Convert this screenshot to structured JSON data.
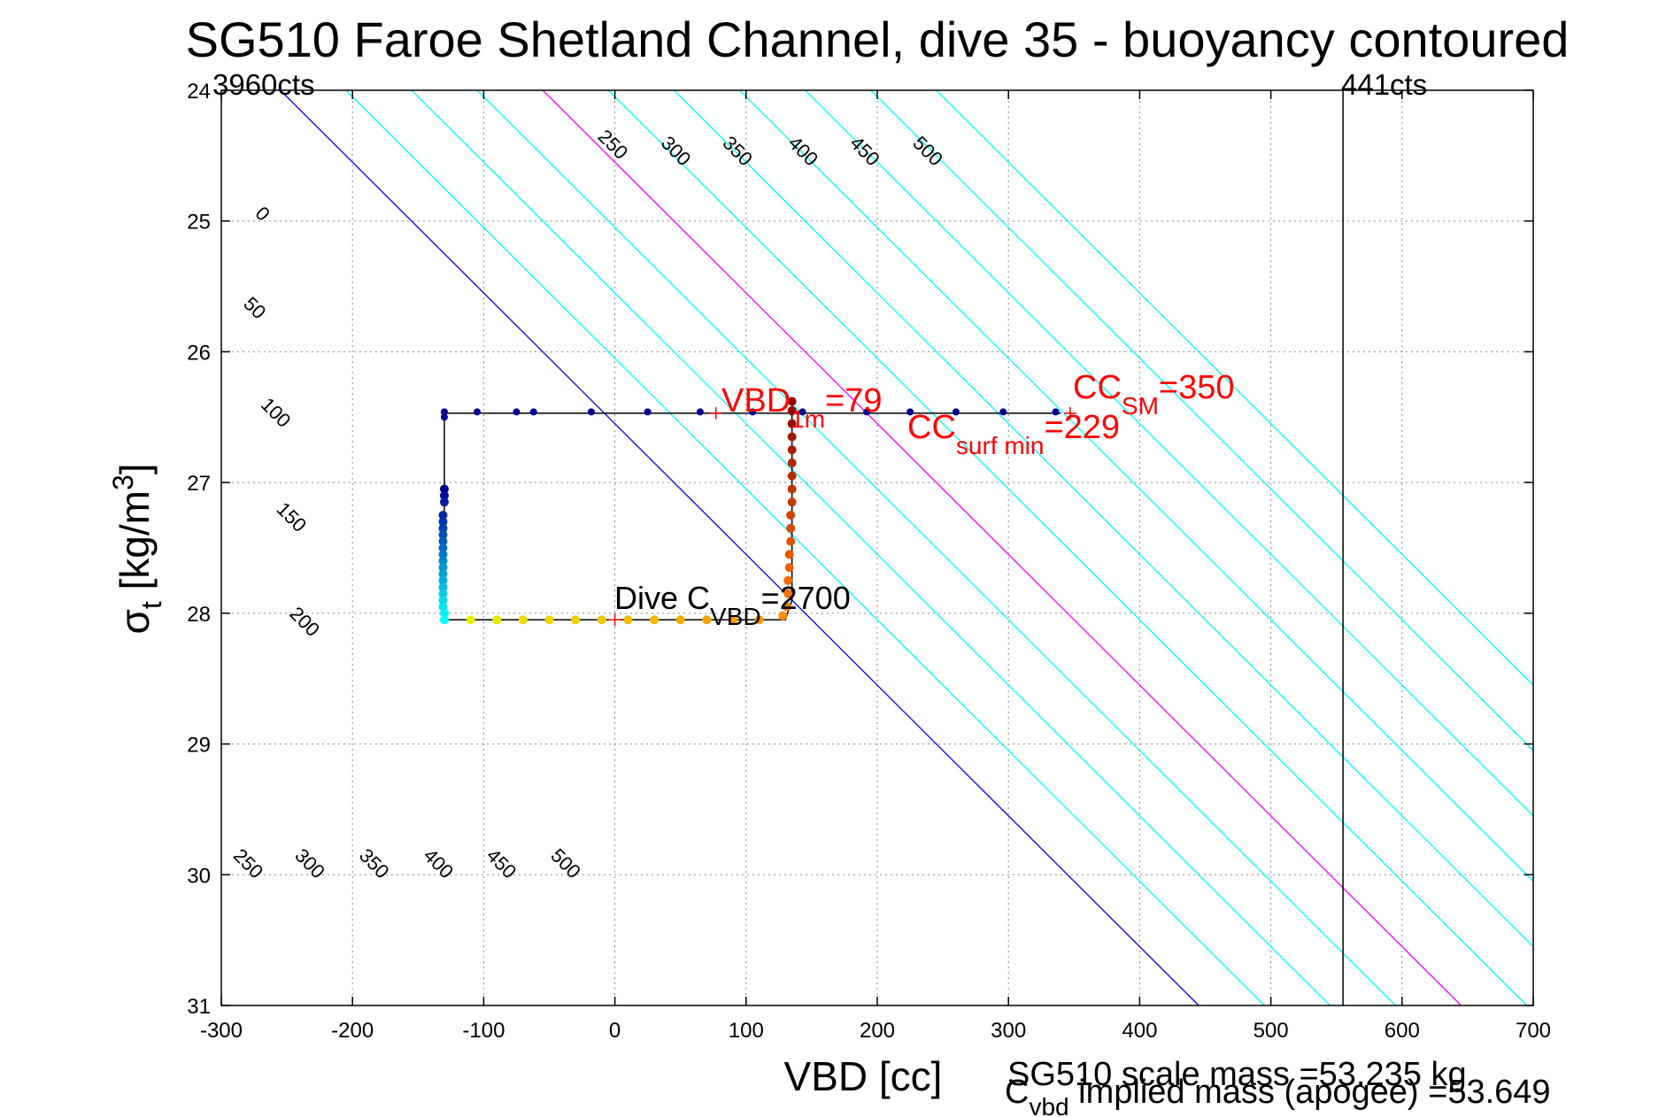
{
  "chart_data": {
    "type": "scatter",
    "title": "SG510 Faroe Shetland Channel, dive 35 - buoyancy contoured",
    "xlabel": "VBD [cc]",
    "ylabel": {
      "sigma": "σ",
      "sub": "t",
      "rest": " [kg/m",
      "sup": "3",
      "close": "]"
    },
    "xlim": [
      -300,
      700
    ],
    "ylim": [
      24,
      31
    ],
    "y_reversed": true,
    "grid": true,
    "x_ticks": [
      -300,
      -200,
      -100,
      0,
      100,
      200,
      300,
      400,
      500,
      600,
      700
    ],
    "y_ticks": [
      24,
      25,
      26,
      27,
      28,
      29,
      30,
      31
    ],
    "x_tick_labels": [
      "-300",
      "-200",
      "-100",
      "0",
      "100",
      "200",
      "300",
      "400",
      "500",
      "600",
      "700"
    ],
    "y_tick_labels": [
      "24",
      "25",
      "26",
      "27",
      "28",
      "29",
      "30",
      "31"
    ],
    "limit_labels": {
      "left": "3960cts",
      "right": "441cts"
    },
    "limit_line_x": 555,
    "contour_slope_cc_per_sigma": 100,
    "contours": [
      {
        "level": 0,
        "x_at_sigma24": -255,
        "color": "#0000ff",
        "label": "0"
      },
      {
        "level": 50,
        "x_at_sigma24": -205,
        "color": "#00ffff",
        "label": "50"
      },
      {
        "level": 100,
        "x_at_sigma24": -155,
        "color": "#00ffff",
        "label": "100"
      },
      {
        "level": 150,
        "x_at_sigma24": -105,
        "color": "#00ffff",
        "label": "150"
      },
      {
        "level": 200,
        "x_at_sigma24": -55,
        "color": "#ff00ff",
        "label": "200"
      },
      {
        "level": 250,
        "x_at_sigma24": -5,
        "color": "#00ffff",
        "label": "250"
      },
      {
        "level": 300,
        "x_at_sigma24": 45,
        "color": "#00ffff",
        "label": "300"
      },
      {
        "level": 350,
        "x_at_sigma24": 95,
        "color": "#00ffff",
        "label": "350"
      },
      {
        "level": 400,
        "x_at_sigma24": 145,
        "color": "#00ffff",
        "label": "400"
      },
      {
        "level": 450,
        "x_at_sigma24": 195,
        "color": "#00ffff",
        "label": "450"
      },
      {
        "level": 500,
        "x_at_sigma24": 245,
        "color": "#00ffff",
        "label": "500"
      }
    ],
    "contour_label_positions": [
      {
        "label": "0",
        "x": -272,
        "y": 24.98
      },
      {
        "label": "50",
        "x": -278,
        "y": 25.7
      },
      {
        "label": "100",
        "x": -262,
        "y": 26.5
      },
      {
        "label": "150",
        "x": -250,
        "y": 27.3
      },
      {
        "label": "200",
        "x": -240,
        "y": 28.1
      },
      {
        "label": "250",
        "x": -5,
        "y": 24.45
      },
      {
        "label": "300",
        "x": 43,
        "y": 24.5
      },
      {
        "label": "350",
        "x": 90,
        "y": 24.5
      },
      {
        "label": "400",
        "x": 140,
        "y": 24.5
      },
      {
        "label": "450",
        "x": 187,
        "y": 24.5
      },
      {
        "label": "500",
        "x": 235,
        "y": 24.5
      },
      {
        "label": "250",
        "x": -283,
        "y": 29.95
      },
      {
        "label": "300",
        "x": -236,
        "y": 29.95
      },
      {
        "label": "350",
        "x": -187,
        "y": 29.95
      },
      {
        "label": "400",
        "x": -138,
        "y": 29.95
      },
      {
        "label": "450",
        "x": -90,
        "y": 29.95
      },
      {
        "label": "500",
        "x": -41,
        "y": 29.95
      }
    ],
    "trajectory_path": [
      {
        "x": -130,
        "y": 26.47
      },
      {
        "x": 340,
        "y": 26.47
      },
      {
        "x": -130,
        "y": 26.47
      },
      {
        "x": -130,
        "y": 28.05
      },
      {
        "x": 130,
        "y": 28.05
      },
      {
        "x": 135,
        "y": 27.9
      },
      {
        "x": 135,
        "y": 26.35
      }
    ],
    "series": [
      {
        "values": [
          {
            "x": -130,
            "y": 26.46
          },
          {
            "x": -105,
            "y": 26.46
          },
          {
            "x": -75,
            "y": 26.46
          },
          {
            "x": -62,
            "y": 26.46
          },
          {
            "x": -18,
            "y": 26.46
          },
          {
            "x": 25,
            "y": 26.46
          },
          {
            "x": 65,
            "y": 26.46
          },
          {
            "x": 105,
            "y": 26.46
          },
          {
            "x": 135,
            "y": 26.46
          },
          {
            "x": 143,
            "y": 26.46
          },
          {
            "x": 192,
            "y": 26.46
          },
          {
            "x": 225,
            "y": 26.46
          },
          {
            "x": 260,
            "y": 26.46
          },
          {
            "x": 296,
            "y": 26.46
          },
          {
            "x": 336,
            "y": 26.46
          },
          {
            "x": -130,
            "y": 26.5
          }
        ]
      },
      {
        "values": [
          {
            "x": -130,
            "y": 27.05
          },
          {
            "x": -130,
            "y": 27.1
          },
          {
            "x": -130,
            "y": 27.15
          },
          {
            "x": -131,
            "y": 27.25
          },
          {
            "x": -131,
            "y": 27.3
          },
          {
            "x": -131,
            "y": 27.35
          },
          {
            "x": -131,
            "y": 27.4
          },
          {
            "x": -131,
            "y": 27.45
          },
          {
            "x": -131,
            "y": 27.5
          },
          {
            "x": -131,
            "y": 27.55
          },
          {
            "x": -131,
            "y": 27.6
          },
          {
            "x": -131,
            "y": 27.65
          },
          {
            "x": -131,
            "y": 27.7
          },
          {
            "x": -131,
            "y": 27.75
          },
          {
            "x": -131,
            "y": 27.8
          },
          {
            "x": -131,
            "y": 27.85
          },
          {
            "x": -131,
            "y": 27.9
          },
          {
            "x": -131,
            "y": 27.95
          },
          {
            "x": -130,
            "y": 28.0
          },
          {
            "x": -130,
            "y": 28.05
          }
        ]
      },
      {
        "values": [
          {
            "x": -110,
            "y": 28.05
          },
          {
            "x": -90,
            "y": 28.05
          },
          {
            "x": -70,
            "y": 28.05
          },
          {
            "x": -50,
            "y": 28.05
          },
          {
            "x": -30,
            "y": 28.05
          },
          {
            "x": -10,
            "y": 28.05
          },
          {
            "x": 10,
            "y": 28.05
          },
          {
            "x": 30,
            "y": 28.05
          },
          {
            "x": 50,
            "y": 28.05
          },
          {
            "x": 70,
            "y": 28.05
          },
          {
            "x": 90,
            "y": 28.05
          },
          {
            "x": 110,
            "y": 28.05
          },
          {
            "x": 128,
            "y": 28.02
          }
        ]
      },
      {
        "values": [
          {
            "x": 131,
            "y": 27.95
          },
          {
            "x": 132,
            "y": 27.85
          },
          {
            "x": 132,
            "y": 27.75
          },
          {
            "x": 133,
            "y": 27.65
          },
          {
            "x": 133,
            "y": 27.55
          },
          {
            "x": 134,
            "y": 27.45
          },
          {
            "x": 134,
            "y": 27.35
          },
          {
            "x": 134,
            "y": 27.25
          },
          {
            "x": 135,
            "y": 27.15
          },
          {
            "x": 135,
            "y": 27.05
          },
          {
            "x": 135,
            "y": 26.95
          },
          {
            "x": 135,
            "y": 26.85
          },
          {
            "x": 135,
            "y": 26.75
          },
          {
            "x": 135,
            "y": 26.65
          },
          {
            "x": 135,
            "y": 26.55
          },
          {
            "x": 135,
            "y": 26.45
          },
          {
            "x": 135,
            "y": 26.38
          }
        ]
      }
    ],
    "point_colors": [
      "#00008f",
      "#0070ff",
      "#e0f000",
      "#c00000"
    ],
    "markers": [
      {
        "x": 77,
        "y": 26.47,
        "color": "#ff0000"
      },
      {
        "x": 347,
        "y": 26.47,
        "color": "#ff0000"
      },
      {
        "x": 0,
        "y": 28.05,
        "color": "#ff0000"
      }
    ],
    "annotations": {
      "vbd1m": {
        "main": "VBD",
        "sub": "1m",
        "tail": "=79"
      },
      "ccsm": {
        "main": "CC",
        "sub": "SM",
        "tail": "=350"
      },
      "ccsurf": {
        "main": "CC",
        "sub": "surf min",
        "tail": "=229"
      },
      "dive_cvbd": {
        "main": "Dive C",
        "sub": "VBD",
        "tail": "=2700"
      }
    },
    "footer": {
      "scale_mass": "SG510 scale mass =53.235 kg",
      "cvbd_main": "C",
      "cvbd_sub": "vbd",
      "cvbd_tail": " implied mass (apogee) =53.649"
    }
  }
}
